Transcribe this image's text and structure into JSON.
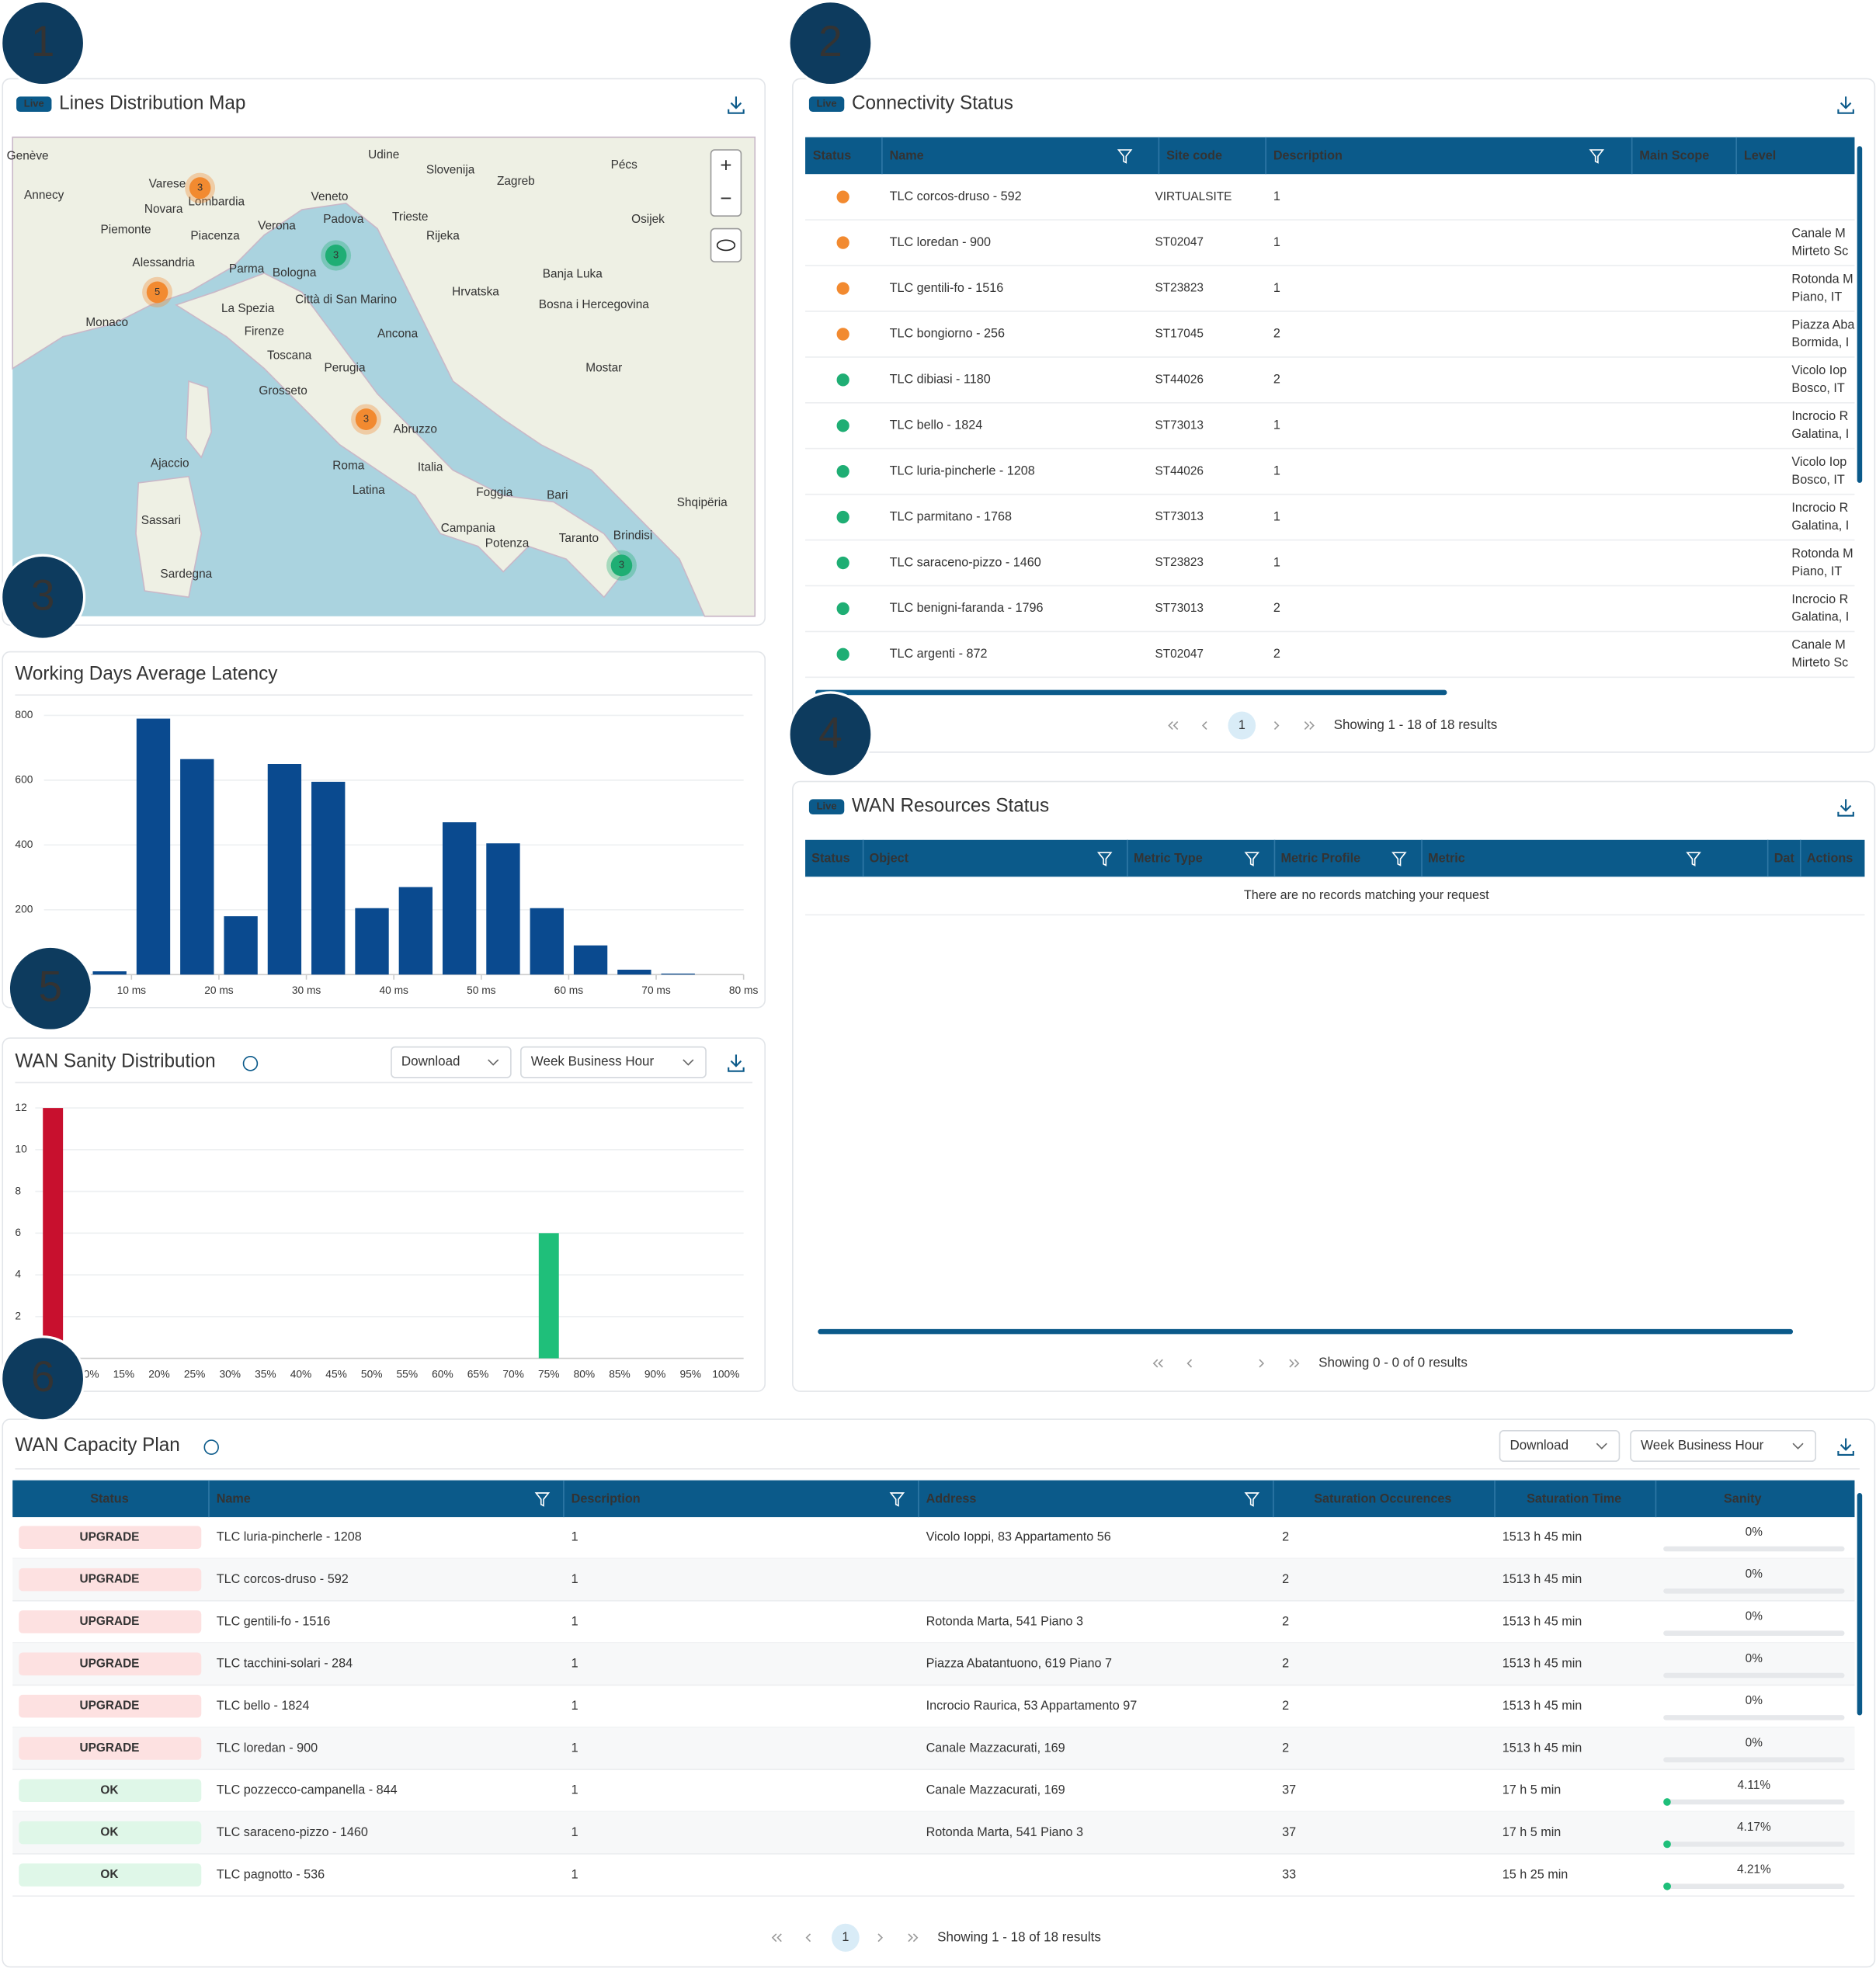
{
  "badges": [
    "1",
    "2",
    "3",
    "4",
    "5",
    "6"
  ],
  "map": {
    "live": "Live",
    "title": "Lines Distribution Map",
    "zoom_in": "+",
    "zoom_out": "−",
    "clusters": [
      {
        "label": "3",
        "color": "#f28a30"
      },
      {
        "label": "3",
        "color": "#1fae74"
      },
      {
        "label": "5",
        "color": "#f28a30"
      },
      {
        "label": "3",
        "color": "#f28a30"
      },
      {
        "label": "3",
        "color": "#1fae74"
      }
    ],
    "places": [
      "Genève",
      "Annecy",
      "Varese",
      "Novara",
      "Lombardia",
      "Piemonte",
      "Alessandria",
      "Piacenza",
      "Parma",
      "Bologna",
      "Verona",
      "Padova",
      "Veneto",
      "Udine",
      "Trieste",
      "Slovenija",
      "Zagreb",
      "Rijeka",
      "Hrvatska",
      "Monaco",
      "La Spezia",
      "Firenze",
      "Toscana",
      "Città di San Marino",
      "Ancona",
      "Perugia",
      "Grosseto",
      "Roma",
      "Italia",
      "Latina",
      "Foggia",
      "Bari",
      "Taranto",
      "Brindisi",
      "Potenza",
      "Ajaccio",
      "Sassari",
      "Mostar",
      "Osijek",
      "Pécs",
      "Banja Luka",
      "Bosna i Hercegovina",
      "Shqipëria",
      "Campania",
      "Abruzzo",
      "Sardegna"
    ]
  },
  "connectivity": {
    "live": "Live",
    "title": "Connectivity Status",
    "columns": [
      "Status",
      "Name",
      "Site code",
      "Description",
      "Main Scope",
      "Level"
    ],
    "rows": [
      {
        "status_color": "#f28a30",
        "name": "TLC corcos-druso - 592",
        "site": "VIRTUALSITE",
        "description": "1",
        "address": []
      },
      {
        "status_color": "#f28a30",
        "name": "TLC loredan - 900",
        "site": "ST02047",
        "description": "1",
        "address": [
          "Canale M",
          "Mirteto Sc"
        ]
      },
      {
        "status_color": "#f28a30",
        "name": "TLC gentili-fo - 1516",
        "site": "ST23823",
        "description": "1",
        "address": [
          "Rotonda M",
          "Piano, IT"
        ]
      },
      {
        "status_color": "#f28a30",
        "name": "TLC bongiorno - 256",
        "site": "ST17045",
        "description": "2",
        "address": [
          "Piazza Aba",
          "Bormida, I"
        ]
      },
      {
        "status_color": "#1fae74",
        "name": "TLC dibiasi - 1180",
        "site": "ST44026",
        "description": "2",
        "address": [
          "Vicolo Iop",
          "Bosco, IT"
        ]
      },
      {
        "status_color": "#1fae74",
        "name": "TLC bello - 1824",
        "site": "ST73013",
        "description": "1",
        "address": [
          "Incrocio R",
          "Galatina, I"
        ]
      },
      {
        "status_color": "#1fae74",
        "name": "TLC luria-pincherle - 1208",
        "site": "ST44026",
        "description": "1",
        "address": [
          "Vicolo Iop",
          "Bosco, IT"
        ]
      },
      {
        "status_color": "#1fae74",
        "name": "TLC parmitano - 1768",
        "site": "ST73013",
        "description": "1",
        "address": [
          "Incrocio R",
          "Galatina, I"
        ]
      },
      {
        "status_color": "#1fae74",
        "name": "TLC saraceno-pizzo - 1460",
        "site": "ST23823",
        "description": "1",
        "address": [
          "Rotonda M",
          "Piano, IT"
        ]
      },
      {
        "status_color": "#1fae74",
        "name": "TLC benigni-faranda - 1796",
        "site": "ST73013",
        "description": "2",
        "address": [
          "Incrocio R",
          "Galatina, I"
        ]
      },
      {
        "status_color": "#1fae74",
        "name": "TLC argenti - 872",
        "site": "ST02047",
        "description": "2",
        "address": [
          "Canale M",
          "Mirteto Sc"
        ]
      }
    ],
    "page": "1",
    "summary": "Showing 1 - 18 of 18 results"
  },
  "wan_resources": {
    "live": "Live",
    "title": "WAN Resources Status",
    "columns": [
      "Status",
      "Object",
      "Metric Type",
      "Metric Profile",
      "Metric",
      "Dat",
      "Actions"
    ],
    "empty": "There are no records matching your request",
    "summary": "Showing 0 - 0 of 0 results"
  },
  "chart_data": [
    {
      "type": "histogram",
      "title": "Working Days Average Latency",
      "bins": [
        5,
        10,
        15,
        20,
        25,
        30,
        35,
        40,
        45,
        50,
        55,
        60,
        65,
        70,
        75,
        80
      ],
      "values": [
        10,
        790,
        665,
        180,
        650,
        595,
        205,
        270,
        470,
        405,
        205,
        90,
        15,
        3,
        0
      ],
      "color": "#0a4a8f",
      "xlim": [
        0,
        80
      ],
      "ylim": [
        0,
        800
      ],
      "xticks": [
        {
          "value": 10,
          "label": "10 ms"
        },
        {
          "value": 20,
          "label": "20 ms"
        },
        {
          "value": 30,
          "label": "30 ms"
        },
        {
          "value": 40,
          "label": "40 ms"
        },
        {
          "value": 50,
          "label": "50 ms"
        },
        {
          "value": 60,
          "label": "60 ms"
        },
        {
          "value": 70,
          "label": "70 ms"
        },
        {
          "value": 80,
          "label": "80 ms"
        }
      ],
      "yticks": [
        200,
        400,
        600,
        800
      ],
      "grid": true
    },
    {
      "type": "bar",
      "title": "WAN Sanity Distribution",
      "controls": [
        "Download",
        "Week Business Hour"
      ],
      "categories": [
        "5%",
        "10%",
        "15%",
        "20%",
        "25%",
        "30%",
        "35%",
        "40%",
        "45%",
        "50%",
        "55%",
        "60%",
        "65%",
        "70%",
        "75%",
        "80%",
        "85%",
        "90%",
        "95%",
        "100%"
      ],
      "values": [
        12,
        0,
        0,
        0,
        0,
        0,
        0,
        0,
        0,
        0,
        0,
        0,
        0,
        0,
        6,
        0,
        0,
        0,
        0,
        0
      ],
      "colors": [
        "#c8102e",
        "#1fbf7a",
        "#1fbf7a",
        "#1fbf7a",
        "#1fbf7a",
        "#1fbf7a",
        "#1fbf7a",
        "#1fbf7a",
        "#1fbf7a",
        "#1fbf7a",
        "#1fbf7a",
        "#1fbf7a",
        "#1fbf7a",
        "#1fbf7a",
        "#1fbf7a",
        "#1fbf7a",
        "#1fbf7a",
        "#1fbf7a",
        "#1fbf7a",
        "#1fbf7a"
      ],
      "ylim": [
        0,
        12
      ],
      "yticks": [
        2,
        4,
        6,
        8,
        10,
        12
      ],
      "grid": true
    }
  ],
  "capacity": {
    "title": "WAN Capacity Plan",
    "controls": [
      "Download",
      "Week Business Hour"
    ],
    "columns": [
      "Status",
      "Name",
      "Description",
      "Address",
      "Saturation Occurences",
      "Saturation Time",
      "Sanity"
    ],
    "rows": [
      {
        "status": "UPGRADE",
        "name": "TLC luria-pincherle - 1208",
        "description": "1",
        "address": "Vicolo Ioppi, 83 Appartamento 56",
        "occurrences": "2",
        "time": "1513 h 45 min",
        "sanity": "0%"
      },
      {
        "status": "UPGRADE",
        "name": "TLC corcos-druso - 592",
        "description": "1",
        "occurrences": "2",
        "time": "1513 h 45 min",
        "sanity": "0%"
      },
      {
        "status": "UPGRADE",
        "name": "TLC gentili-fo - 1516",
        "description": "1",
        "address": "Rotonda Marta, 541 Piano 3",
        "occurrences": "2",
        "time": "1513 h 45 min",
        "sanity": "0%"
      },
      {
        "status": "UPGRADE",
        "name": "TLC tacchini-solari - 284",
        "description": "1",
        "address": "Piazza Abatantuono, 619 Piano 7",
        "occurrences": "2",
        "time": "1513 h 45 min",
        "sanity": "0%"
      },
      {
        "status": "UPGRADE",
        "name": "TLC bello - 1824",
        "description": "1",
        "address": "Incrocio Raurica, 53 Appartamento 97",
        "occurrences": "2",
        "time": "1513 h 45 min",
        "sanity": "0%"
      },
      {
        "status": "UPGRADE",
        "name": "TLC loredan - 900",
        "description": "1",
        "address": "Canale Mazzacurati, 169",
        "occurrences": "2",
        "time": "1513 h 45 min",
        "sanity": "0%"
      },
      {
        "status": "OK",
        "name": "TLC pozzecco-campanella - 844",
        "description": "1",
        "address": "Canale Mazzacurati, 169",
        "occurrences": "37",
        "time": "17 h 5 min",
        "sanity": "4.11%"
      },
      {
        "status": "OK",
        "name": "TLC saraceno-pizzo - 1460",
        "description": "1",
        "address": "Rotonda Marta, 541 Piano 3",
        "occurrences": "37",
        "time": "17 h 5 min",
        "sanity": "4.17%"
      },
      {
        "status": "OK",
        "name": "TLC pagnotto - 536",
        "description": "1",
        "occurrences": "33",
        "time": "15 h 25 min",
        "sanity": "4.21%"
      }
    ],
    "page": "1",
    "summary": "Showing 1 - 18 of 18 results"
  }
}
